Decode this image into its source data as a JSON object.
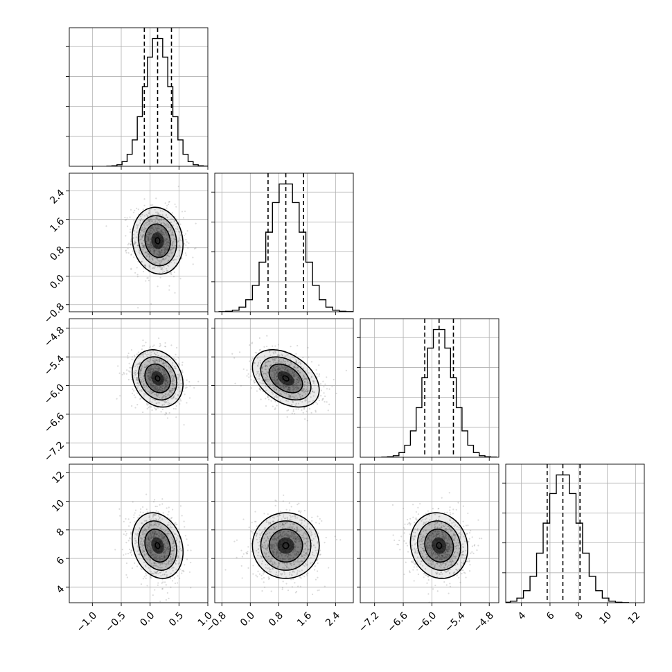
{
  "chart_data": {
    "type": "scatter",
    "subtype": "corner-plot",
    "title": "",
    "grid": true,
    "quantile_lines": [
      0.16,
      0.5,
      0.84
    ],
    "contour_fill_color": "#000000",
    "scatter_color": "#7f7f7f",
    "parameters": [
      {
        "xlabel": "",
        "range": [
          -1.4,
          1.0
        ],
        "x_ticks": [
          -1.0,
          -0.5,
          0.0,
          0.5,
          1.0
        ],
        "x_tick_labels": [
          "−1.0",
          "−0.5",
          "0.0",
          "0.5",
          "1.0"
        ],
        "y_ticks": [],
        "y_tick_labels": [],
        "mean": 0.13,
        "std": 0.22,
        "quantiles": [
          -0.1,
          0.13,
          0.37
        ]
      },
      {
        "xlabel": "",
        "range": [
          -1.0,
          2.9
        ],
        "x_ticks": [
          -0.8,
          0.0,
          0.8,
          1.6,
          2.4
        ],
        "x_tick_labels": [
          "−0.8",
          "0.0",
          "0.8",
          "1.6",
          "2.4"
        ],
        "y_ticks": [
          -0.8,
          0.0,
          0.8,
          1.6,
          2.4
        ],
        "y_tick_labels": [
          "−0.8",
          "0.0",
          "0.8",
          "1.6",
          "2.4"
        ],
        "mean": 1.0,
        "std": 0.47,
        "quantiles": [
          0.5,
          1.0,
          1.5
        ]
      },
      {
        "xlabel": "",
        "range": [
          -7.5,
          -4.6
        ],
        "x_ticks": [
          -7.2,
          -6.6,
          -6.0,
          -5.4,
          -4.8
        ],
        "x_tick_labels": [
          "−7.2",
          "−6.6",
          "−6.0",
          "−5.4",
          "−4.8"
        ],
        "y_ticks": [
          -7.2,
          -6.6,
          -6.0,
          -5.4,
          -4.8
        ],
        "y_tick_labels": [
          "−7.2",
          "−6.6",
          "−6.0",
          "−5.4",
          "−4.8"
        ],
        "mean": -5.85,
        "std": 0.3,
        "quantiles": [
          -6.15,
          -5.85,
          -5.55
        ]
      },
      {
        "xlabel": "",
        "range": [
          2.9,
          12.6
        ],
        "x_ticks": [
          4,
          6,
          8,
          10,
          12
        ],
        "x_tick_labels": [
          "4",
          "6",
          "8",
          "10",
          "12"
        ],
        "y_ticks": [
          4,
          6,
          8,
          10,
          12
        ],
        "y_tick_labels": [
          "4",
          "6",
          "8",
          "10",
          "12"
        ],
        "mean": 6.9,
        "std": 1.15,
        "quantiles": [
          5.8,
          6.9,
          8.1
        ]
      }
    ],
    "correlations": [
      {
        "pair": [
          0,
          1
        ],
        "rho": -0.1
      },
      {
        "pair": [
          0,
          2
        ],
        "rho": -0.2
      },
      {
        "pair": [
          0,
          3
        ],
        "rho": -0.2
      },
      {
        "pair": [
          1,
          2
        ],
        "rho": -0.4
      },
      {
        "pair": [
          1,
          3
        ],
        "rho": 0.0
      },
      {
        "pair": [
          2,
          3
        ],
        "rho": -0.1
      }
    ]
  }
}
